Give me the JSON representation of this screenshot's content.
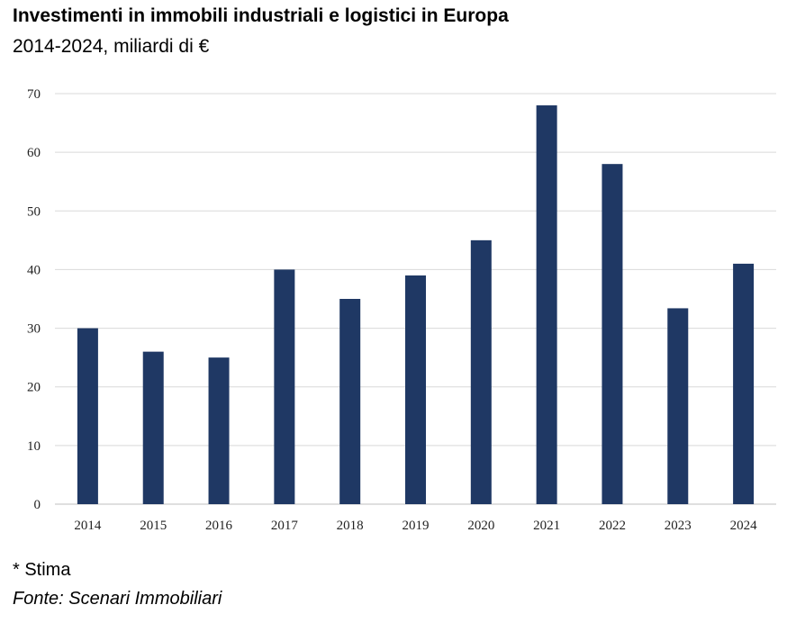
{
  "header": {
    "title": "Investimenti in immobili industriali e logistici in Europa",
    "subtitle": "2014-2024, miliardi di €"
  },
  "footer": {
    "footnote": "* Stima",
    "source": "Fonte: Scenari Immobiliari"
  },
  "colors": {
    "bar": "#1f3864",
    "grid": "#d9d9d9"
  },
  "chart_data": {
    "type": "bar",
    "title": "Investimenti in immobili industriali e logistici in Europa",
    "subtitle": "2014-2024, miliardi di €",
    "categories": [
      "2014",
      "2015",
      "2016",
      "2017",
      "2018",
      "2019",
      "2020",
      "2021",
      "2022",
      "2023",
      "2024"
    ],
    "values": [
      30,
      26,
      25,
      40,
      35,
      39,
      45,
      68,
      58,
      33.4,
      41
    ],
    "xlabel": "",
    "ylabel": "",
    "ylim": [
      0,
      70
    ],
    "yticks": [
      0,
      10,
      20,
      30,
      40,
      50,
      60,
      70
    ],
    "grid": true,
    "legend": "none"
  }
}
